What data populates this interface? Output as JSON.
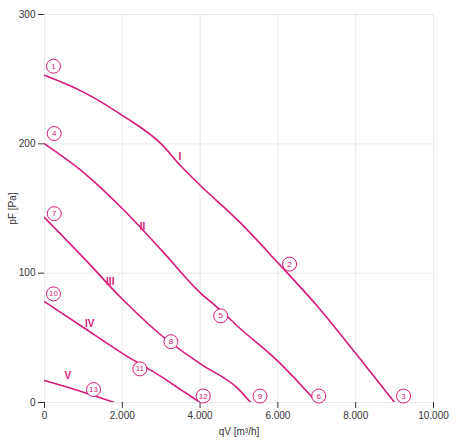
{
  "chart_data": {
    "type": "line",
    "x_label": "qV [m³/h]",
    "y_label": "pF [Pa]",
    "xlim": [
      0,
      10000
    ],
    "xticks": [
      0,
      {
        "value": 2000,
        "label": "2.000"
      },
      {
        "value": 4000,
        "label": "4.000"
      },
      {
        "value": 6000,
        "label": "6.000"
      },
      {
        "value": 8000,
        "label": "8.000"
      },
      {
        "value": 10000,
        "label": "10.000"
      }
    ],
    "ylim": [
      0,
      300
    ],
    "yticks": [
      0,
      100,
      200,
      300
    ],
    "grid": true,
    "series": [
      {
        "name": "I",
        "color": "#d6197a",
        "label": {
          "x": 3480,
          "y": 190
        },
        "x": [
          0,
          1000,
          2000,
          3000,
          3500,
          4000,
          5000,
          6000,
          7000,
          8000,
          9000
        ],
        "values": [
          253,
          240,
          222,
          200,
          183,
          168,
          140,
          108,
          75,
          38,
          0
        ]
      },
      {
        "name": "II",
        "color": "#d6197a",
        "label": {
          "x": 2520,
          "y": 136
        },
        "x": [
          0,
          1000,
          2000,
          3000,
          4000,
          4500,
          5000,
          6000,
          6700,
          7000
        ],
        "values": [
          200,
          178,
          150,
          118,
          85,
          72,
          58,
          32,
          10,
          0
        ]
      },
      {
        "name": "III",
        "color": "#d6197a",
        "label": {
          "x": 1690,
          "y": 93
        },
        "x": [
          0,
          1000,
          2000,
          3000,
          4000,
          5000,
          5300
        ],
        "values": [
          143,
          112,
          80,
          52,
          30,
          10,
          0
        ]
      },
      {
        "name": "IV",
        "color": "#d6197a",
        "label": {
          "x": 1160,
          "y": 61
        },
        "x": [
          0,
          1000,
          2000,
          3000,
          3500,
          4000
        ],
        "values": [
          78,
          58,
          38,
          20,
          10,
          0
        ]
      },
      {
        "name": "V",
        "color": "#d6197a",
        "label": {
          "x": 600,
          "y": 21
        },
        "x": [
          0,
          1000,
          1800
        ],
        "values": [
          17,
          8,
          0
        ]
      }
    ],
    "annotations": [
      {
        "text": "1",
        "x": 230,
        "y": 260
      },
      {
        "text": "2",
        "x": 6300,
        "y": 107
      },
      {
        "text": "3",
        "x": 9230,
        "y": 5
      },
      {
        "text": "4",
        "x": 250,
        "y": 208
      },
      {
        "text": "5",
        "x": 4530,
        "y": 67
      },
      {
        "text": "6",
        "x": 7050,
        "y": 5
      },
      {
        "text": "7",
        "x": 250,
        "y": 146
      },
      {
        "text": "8",
        "x": 3250,
        "y": 47
      },
      {
        "text": "9",
        "x": 5540,
        "y": 5
      },
      {
        "text": "10",
        "x": 230,
        "y": 84
      },
      {
        "text": "11",
        "x": 2450,
        "y": 26
      },
      {
        "text": "12",
        "x": 4080,
        "y": 5
      },
      {
        "text": "13",
        "x": 1260,
        "y": 10
      }
    ]
  }
}
